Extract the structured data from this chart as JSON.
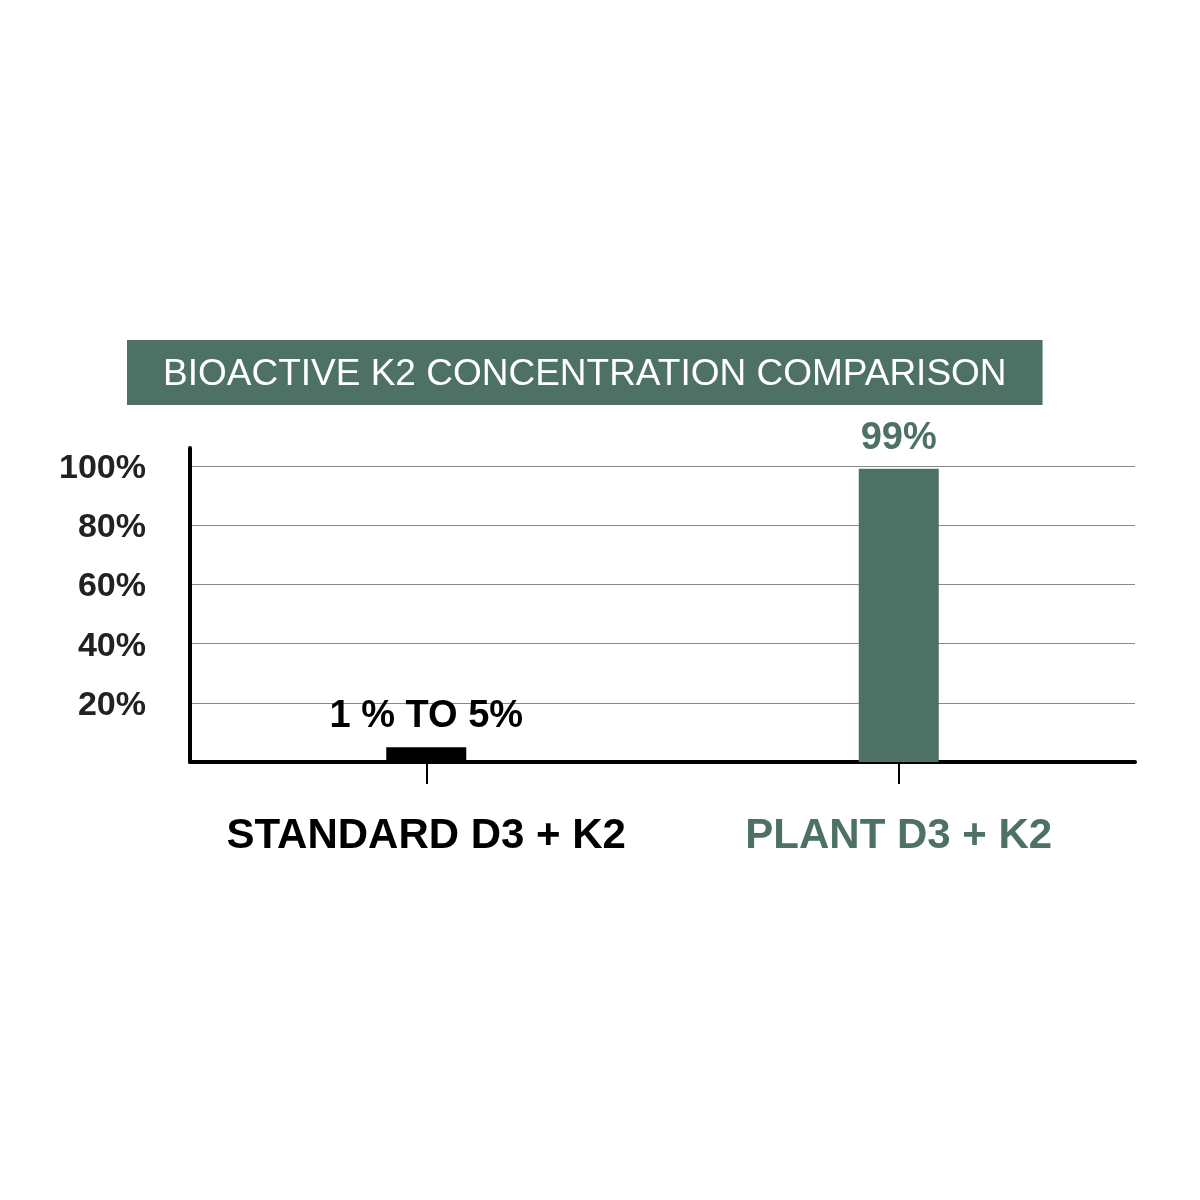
{
  "chart_data": {
    "type": "bar",
    "title": "BIOACTIVE K2 CONCENTRATION COMPARISON",
    "categories": [
      "STANDARD D3 + K2",
      "PLANT D3 + K2"
    ],
    "values": [
      5,
      99
    ],
    "colors": [
      "#000000",
      "#4d7265"
    ],
    "value_labels": [
      "1 % TO 5%",
      "99%"
    ],
    "ylim": [
      0,
      106
    ],
    "yticks": [
      {
        "value": 20,
        "label": "20%"
      },
      {
        "value": 40,
        "label": "40%"
      },
      {
        "value": 60,
        "label": "60%"
      },
      {
        "value": 80,
        "label": "80%"
      },
      {
        "value": 100,
        "label": "100%"
      }
    ],
    "grid": "y"
  }
}
